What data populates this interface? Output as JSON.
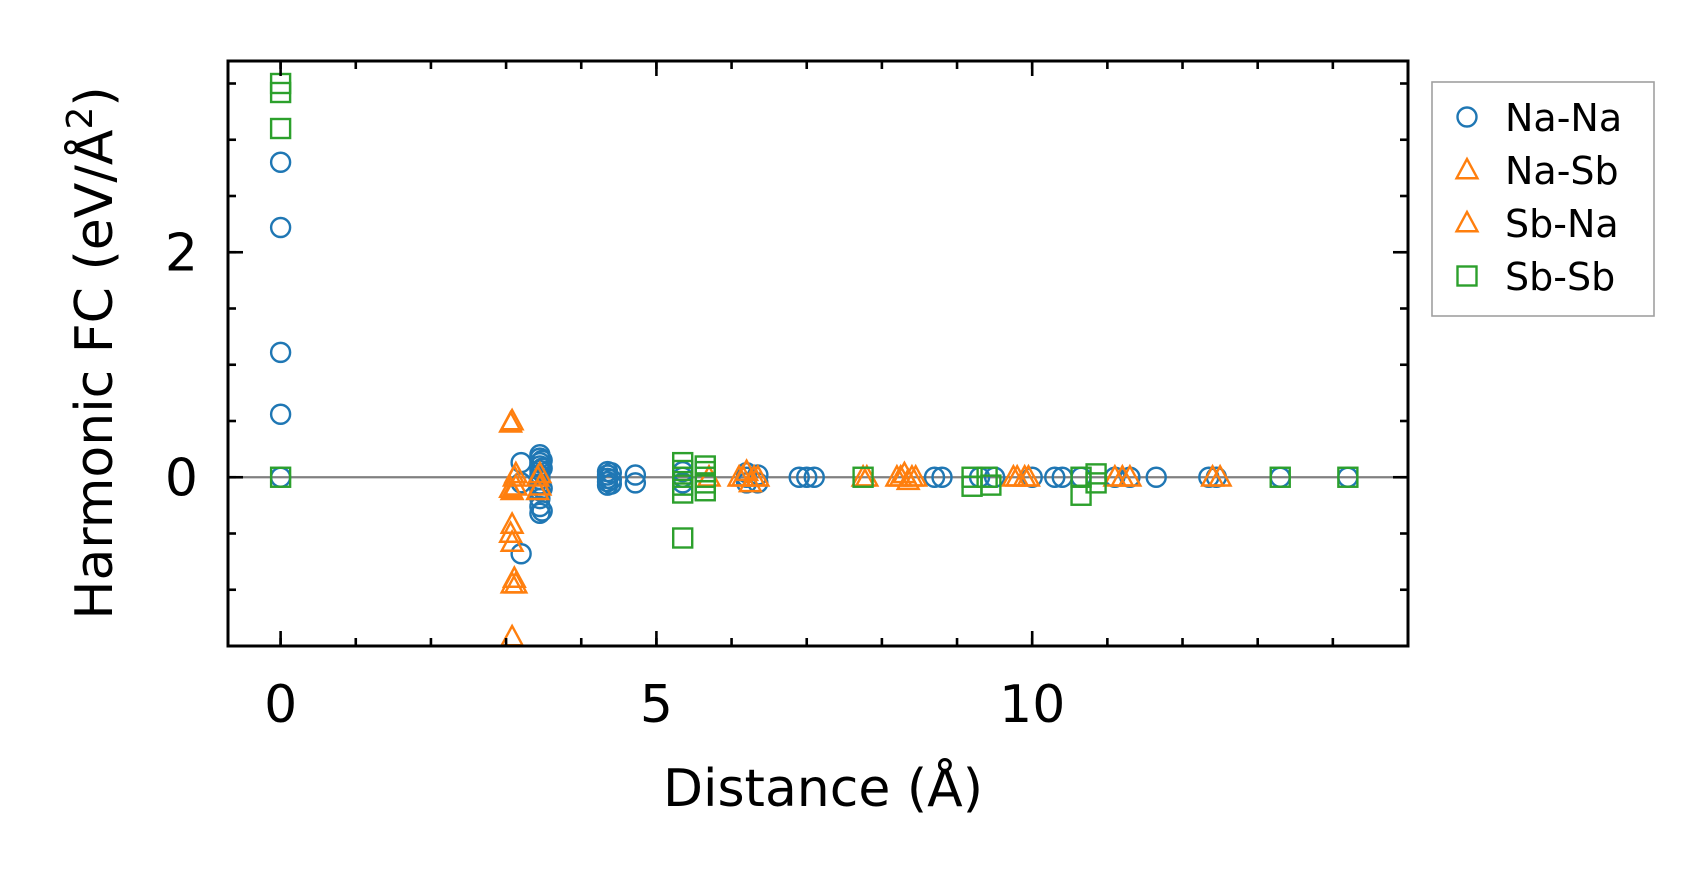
{
  "chart_data": {
    "type": "scatter",
    "title": "",
    "xlabel": "Distance (Å)",
    "ylabel_main": "Harmonic FC (eV/Å",
    "ylabel_sup": "2",
    "ylabel_close": ")",
    "xlim": [
      -0.7,
      15.0
    ],
    "ylim": [
      -1.5,
      3.7
    ],
    "xticks": [
      {
        "value": 0,
        "label": "0"
      },
      {
        "value": 5,
        "label": "5"
      },
      {
        "value": 10,
        "label": "10"
      }
    ],
    "yticks": [
      {
        "value": 0,
        "label": "0"
      },
      {
        "value": 2,
        "label": "2"
      }
    ],
    "x_minor_step": 1,
    "y_minor_step": 0.5,
    "zero_line": true,
    "grid": false,
    "legend_position": "outside-right",
    "series": [
      {
        "name": "Na-Na",
        "marker": "circle",
        "color": "#1f77b4",
        "points": [
          [
            0,
            2.8
          ],
          [
            0,
            2.22
          ],
          [
            0,
            1.11
          ],
          [
            0,
            0.56
          ],
          [
            0,
            0
          ],
          [
            3.2,
            0.13
          ],
          [
            3.2,
            -0.68
          ],
          [
            3.2,
            -0.05
          ],
          [
            3.45,
            0.2
          ],
          [
            3.45,
            0.17
          ],
          [
            3.45,
            0.13
          ],
          [
            3.45,
            0.1
          ],
          [
            3.45,
            0.06
          ],
          [
            3.45,
            0.02
          ],
          [
            3.45,
            -0.02
          ],
          [
            3.45,
            -0.06
          ],
          [
            3.45,
            -0.12
          ],
          [
            3.45,
            -0.19
          ],
          [
            3.45,
            -0.26
          ],
          [
            3.45,
            -0.32
          ],
          [
            3.48,
            0.15
          ],
          [
            3.48,
            0.08
          ],
          [
            3.48,
            -0.1
          ],
          [
            3.48,
            -0.3
          ],
          [
            4.35,
            0.05
          ],
          [
            4.35,
            0.02
          ],
          [
            4.35,
            -0.01
          ],
          [
            4.35,
            -0.04
          ],
          [
            4.35,
            -0.07
          ],
          [
            4.4,
            0.04
          ],
          [
            4.4,
            -0.02
          ],
          [
            4.4,
            -0.06
          ],
          [
            4.72,
            0.02
          ],
          [
            4.72,
            -0.05
          ],
          [
            5.35,
            0.05
          ],
          [
            5.35,
            0.0
          ],
          [
            5.35,
            -0.05
          ],
          [
            6.2,
            0.04
          ],
          [
            6.2,
            0.0
          ],
          [
            6.2,
            -0.05
          ],
          [
            6.35,
            0.02
          ],
          [
            6.35,
            -0.05
          ],
          [
            6.9,
            0.0
          ],
          [
            7.0,
            0.0
          ],
          [
            7.1,
            0.0
          ],
          [
            8.7,
            0.0
          ],
          [
            8.8,
            0.0
          ],
          [
            9.3,
            0.0
          ],
          [
            9.5,
            0.0
          ],
          [
            10.0,
            0.0
          ],
          [
            10.3,
            0.0
          ],
          [
            10.4,
            0.0
          ],
          [
            10.65,
            0.0
          ],
          [
            11.1,
            0.0
          ],
          [
            11.3,
            0.0
          ],
          [
            11.65,
            0.0
          ],
          [
            12.35,
            0.0
          ],
          [
            12.45,
            0.0
          ],
          [
            13.3,
            0.0
          ],
          [
            14.2,
            0.0
          ]
        ]
      },
      {
        "name": "Na-Sb",
        "marker": "triangle",
        "color": "#ff7f0e",
        "points": [
          [
            3.08,
            0.5
          ],
          [
            3.08,
            -0.12
          ],
          [
            3.08,
            -0.42
          ],
          [
            3.08,
            -0.58
          ],
          [
            3.08,
            -0.95
          ],
          [
            3.08,
            -1.42
          ],
          [
            3.13,
            0.03
          ],
          [
            3.13,
            -0.08
          ],
          [
            3.13,
            -0.95
          ],
          [
            3.45,
            0.03
          ],
          [
            3.45,
            -0.08
          ],
          [
            5.7,
            0.0
          ],
          [
            6.1,
            0.0
          ],
          [
            6.2,
            0.05
          ],
          [
            6.25,
            -0.05
          ],
          [
            6.35,
            0.0
          ],
          [
            7.75,
            0.0
          ],
          [
            8.2,
            0.0
          ],
          [
            8.3,
            0.03
          ],
          [
            8.35,
            -0.03
          ],
          [
            8.45,
            0.0
          ],
          [
            9.75,
            0.0
          ],
          [
            9.9,
            0.0
          ],
          [
            11.1,
            0.0
          ],
          [
            11.3,
            0.0
          ],
          [
            12.4,
            0.0
          ]
        ]
      },
      {
        "name": "Sb-Na",
        "marker": "triangle",
        "color": "#ff7f0e",
        "points": [
          [
            3.06,
            0.48
          ],
          [
            3.06,
            -0.1
          ],
          [
            3.06,
            -0.5
          ],
          [
            3.11,
            0.0
          ],
          [
            3.11,
            -0.9
          ],
          [
            3.42,
            0.0
          ],
          [
            3.42,
            -0.12
          ],
          [
            6.15,
            0.0
          ],
          [
            6.3,
            0.0
          ],
          [
            7.8,
            0.0
          ],
          [
            8.25,
            0.0
          ],
          [
            8.4,
            0.0
          ],
          [
            9.8,
            0.0
          ],
          [
            9.95,
            0.0
          ],
          [
            11.2,
            0.0
          ],
          [
            12.5,
            0.0
          ]
        ]
      },
      {
        "name": "Sb-Sb",
        "marker": "square",
        "color": "#2ca02c",
        "points": [
          [
            0,
            3.5
          ],
          [
            0,
            3.42
          ],
          [
            0,
            3.1
          ],
          [
            0,
            0
          ],
          [
            5.35,
            0.13
          ],
          [
            5.35,
            0.06
          ],
          [
            5.35,
            0.0
          ],
          [
            5.35,
            -0.07
          ],
          [
            5.35,
            -0.14
          ],
          [
            5.35,
            -0.54
          ],
          [
            5.65,
            0.1
          ],
          [
            5.65,
            0.05
          ],
          [
            5.65,
            0.0
          ],
          [
            5.65,
            -0.05
          ],
          [
            5.65,
            -0.12
          ],
          [
            7.75,
            0.0
          ],
          [
            9.2,
            0.0
          ],
          [
            9.2,
            -0.08
          ],
          [
            9.4,
            0.0
          ],
          [
            9.45,
            -0.07
          ],
          [
            10.65,
            0.0
          ],
          [
            10.65,
            -0.16
          ],
          [
            10.85,
            0.03
          ],
          [
            10.85,
            -0.05
          ],
          [
            13.3,
            0.0
          ],
          [
            14.2,
            0.0
          ]
        ]
      }
    ]
  }
}
